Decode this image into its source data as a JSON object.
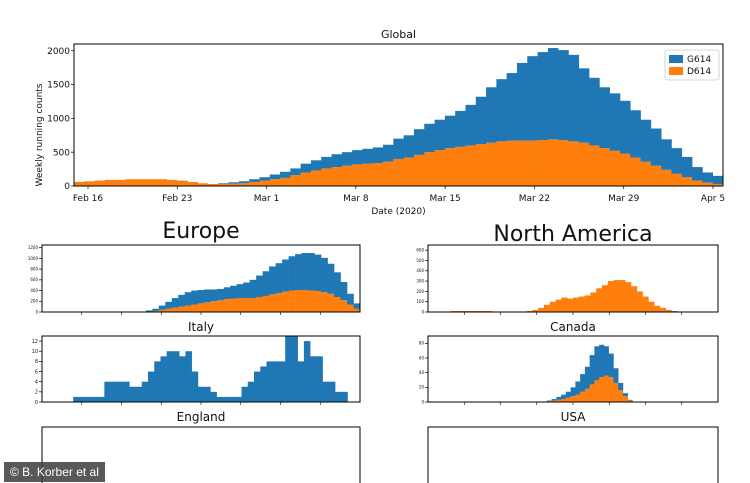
{
  "chart_data": [
    {
      "id": "global",
      "type": "bar",
      "stacked": true,
      "title": "Global",
      "xlabel": "Date (2020)",
      "ylabel": "Weekly running counts",
      "ylim": [
        0,
        2100
      ],
      "yticks": [
        0,
        500,
        1000,
        1500,
        2000
      ],
      "xtick_labels": [
        "Feb 16",
        "Feb 23",
        "Mar 1",
        "Mar 8",
        "Mar 15",
        "Mar 22",
        "Mar 29",
        "Apr 5"
      ],
      "legend": {
        "placement": "top-right",
        "entries": [
          "G614",
          "D614"
        ]
      },
      "series": [
        {
          "name": "G614",
          "color": "#1f77b4",
          "values": [
            0,
            0,
            0,
            0,
            0,
            0,
            0,
            0,
            0,
            0,
            0,
            0,
            0,
            0,
            10,
            20,
            30,
            40,
            50,
            70,
            90,
            100,
            130,
            150,
            170,
            190,
            200,
            210,
            220,
            230,
            250,
            300,
            330,
            380,
            420,
            450,
            480,
            530,
            600,
            700,
            820,
            920,
            1000,
            1150,
            1250,
            1300,
            1350,
            1330,
            1280,
            1100,
            1000,
            900,
            850,
            780,
            700,
            620,
            550,
            450,
            380,
            300,
            200,
            150,
            120
          ]
        },
        {
          "name": "D614",
          "color": "#ff7f0e",
          "values": [
            60,
            70,
            80,
            90,
            90,
            100,
            100,
            100,
            100,
            90,
            80,
            60,
            40,
            30,
            30,
            35,
            40,
            60,
            80,
            100,
            120,
            160,
            200,
            230,
            260,
            280,
            300,
            320,
            330,
            340,
            360,
            400,
            420,
            460,
            500,
            530,
            560,
            580,
            600,
            620,
            640,
            660,
            670,
            670,
            670,
            680,
            690,
            680,
            660,
            640,
            600,
            560,
            520,
            480,
            420,
            360,
            300,
            240,
            180,
            130,
            80,
            50,
            30
          ]
        }
      ]
    },
    {
      "id": "europe",
      "type": "bar",
      "stacked": true,
      "title": "Europe",
      "ylim": [
        0,
        1250
      ],
      "yticks": [
        0,
        200,
        400,
        600,
        800,
        1000,
        1200
      ],
      "series": [
        {
          "name": "G614",
          "color": "#1f77b4",
          "values": [
            0,
            0,
            0,
            0,
            0,
            0,
            0,
            0,
            0,
            0,
            0,
            0,
            0,
            0,
            0,
            0,
            20,
            40,
            80,
            130,
            180,
            220,
            250,
            260,
            250,
            240,
            220,
            210,
            220,
            240,
            260,
            290,
            340,
            400,
            460,
            520,
            560,
            600,
            640,
            670,
            690,
            700,
            680,
            640,
            560,
            460,
            340,
            200,
            100
          ]
        },
        {
          "name": "D614",
          "color": "#ff7f0e",
          "values": [
            0,
            0,
            0,
            0,
            0,
            0,
            0,
            0,
            0,
            0,
            0,
            0,
            0,
            0,
            0,
            0,
            10,
            20,
            40,
            60,
            80,
            100,
            120,
            140,
            160,
            180,
            200,
            220,
            240,
            250,
            260,
            260,
            260,
            280,
            300,
            330,
            350,
            380,
            400,
            410,
            410,
            400,
            390,
            370,
            340,
            280,
            220,
            140,
            60
          ]
        }
      ]
    },
    {
      "id": "north-america",
      "type": "bar",
      "stacked": true,
      "title": "North America",
      "ylim": [
        0,
        650
      ],
      "yticks": [
        0,
        100,
        200,
        300,
        400,
        500,
        600
      ],
      "series": [
        {
          "name": "G614",
          "color": "#1f77b4",
          "values": [
            0,
            0,
            0,
            0,
            0,
            0,
            0,
            0,
            0,
            0,
            0,
            0,
            0,
            0,
            0,
            0,
            0,
            0,
            0,
            0,
            0,
            0,
            0,
            0,
            0,
            0,
            0,
            0,
            0,
            0,
            0,
            0,
            0,
            0,
            0,
            0,
            0,
            0,
            0,
            0,
            0,
            0,
            0,
            0,
            0,
            0,
            0,
            0,
            0,
            0
          ]
        },
        {
          "name": "D614",
          "color": "#ff7f0e",
          "values": [
            0,
            0,
            0,
            0,
            10,
            10,
            10,
            10,
            10,
            10,
            10,
            0,
            0,
            0,
            0,
            0,
            0,
            10,
            20,
            40,
            70,
            100,
            120,
            140,
            130,
            140,
            150,
            160,
            190,
            230,
            260,
            300,
            310,
            310,
            290,
            250,
            200,
            150,
            100,
            60,
            40,
            20,
            10,
            0,
            0,
            0,
            0,
            0,
            0,
            0
          ]
        }
      ]
    },
    {
      "id": "italy",
      "type": "bar",
      "stacked": true,
      "title": "Italy",
      "ylim": [
        0,
        13
      ],
      "yticks": [
        0,
        2,
        4,
        6,
        8,
        10,
        12
      ],
      "series": [
        {
          "name": "G614",
          "color": "#1f77b4",
          "values": [
            0,
            0,
            0,
            0,
            0,
            1,
            1,
            1,
            1,
            1,
            4,
            4,
            4,
            4,
            3,
            3,
            4,
            6,
            8,
            9,
            10,
            10,
            9,
            10,
            6,
            3,
            3,
            2,
            1,
            1,
            1,
            1,
            3,
            4,
            6,
            7,
            8,
            8,
            8,
            13,
            13,
            8,
            12,
            9,
            9,
            4,
            4,
            2,
            2,
            0,
            0
          ]
        },
        {
          "name": "D614",
          "color": "#ff7f0e",
          "values": [
            0,
            0,
            0,
            0,
            0,
            0,
            0,
            0,
            0,
            0,
            0,
            0,
            0,
            0,
            0,
            0,
            0,
            0,
            0,
            0,
            0,
            0,
            0,
            0,
            0,
            0,
            0,
            0,
            0,
            0,
            0,
            0,
            0,
            0,
            0,
            0,
            0,
            0,
            0,
            0,
            0,
            0,
            0,
            0,
            0,
            0,
            0,
            0,
            0,
            0,
            0
          ]
        }
      ]
    },
    {
      "id": "canada",
      "type": "bar",
      "stacked": true,
      "title": "Canada",
      "ylim": [
        0,
        90
      ],
      "yticks": [
        0,
        20,
        40,
        60,
        80
      ],
      "series": [
        {
          "name": "G614",
          "color": "#1f77b4",
          "values": [
            0,
            0,
            0,
            0,
            0,
            0,
            0,
            0,
            0,
            0,
            0,
            0,
            0,
            0,
            0,
            0,
            0,
            0,
            0,
            0,
            0,
            0,
            0,
            0,
            0,
            1,
            2,
            4,
            6,
            8,
            12,
            18,
            24,
            30,
            40,
            46,
            44,
            40,
            32,
            20,
            10,
            4,
            1,
            0,
            0,
            0,
            0,
            0,
            0,
            0,
            0,
            0,
            0,
            0,
            0,
            0,
            0,
            0,
            0,
            0,
            0
          ]
        },
        {
          "name": "D614",
          "color": "#ff7f0e",
          "values": [
            0,
            0,
            0,
            0,
            0,
            0,
            0,
            0,
            0,
            0,
            0,
            0,
            0,
            0,
            0,
            0,
            0,
            0,
            0,
            0,
            0,
            0,
            0,
            0,
            0,
            1,
            2,
            3,
            4,
            6,
            8,
            10,
            14,
            18,
            24,
            30,
            34,
            36,
            34,
            26,
            16,
            8,
            2,
            0,
            0,
            0,
            0,
            0,
            0,
            0,
            0,
            0,
            0,
            0,
            0,
            0,
            0,
            0,
            0,
            0,
            0
          ]
        }
      ]
    },
    {
      "id": "england",
      "type": "bar",
      "stacked": true,
      "title": "England",
      "series": [
        {
          "name": "G614",
          "color": "#1f77b4",
          "values": [
            0,
            0,
            0,
            0,
            0,
            0,
            0,
            0,
            0,
            0,
            0,
            0,
            0,
            0,
            0,
            0,
            0,
            0,
            0,
            0,
            0,
            0,
            0,
            0,
            0,
            0,
            0,
            0,
            0,
            0,
            0,
            0,
            0,
            0,
            0,
            0,
            0,
            0,
            0,
            0,
            0,
            0,
            0,
            0,
            0,
            0,
            0,
            0,
            0,
            0,
            0,
            0,
            0,
            0,
            0,
            0,
            0,
            0,
            0,
            0
          ]
        },
        {
          "name": "D614",
          "color": "#ff7f0e",
          "values": [
            0,
            0,
            0,
            0,
            0,
            0,
            0,
            0,
            0,
            0,
            0,
            0,
            0,
            0,
            0,
            0,
            0,
            0,
            0,
            0,
            0,
            0,
            0,
            0,
            0,
            0,
            0,
            0,
            0,
            0,
            0,
            0,
            0,
            0,
            0,
            0,
            0,
            0,
            0,
            0,
            0,
            0,
            0,
            0,
            0,
            0,
            0,
            0,
            0,
            0,
            0,
            0,
            0,
            0,
            0,
            0,
            0,
            0,
            0,
            0
          ]
        }
      ]
    },
    {
      "id": "usa",
      "type": "bar",
      "stacked": true,
      "title": "USA",
      "series": [
        {
          "name": "G614",
          "color": "#1f77b4",
          "values": [
            0,
            0,
            0,
            0,
            0,
            0,
            0,
            0,
            0,
            0,
            0,
            0,
            0,
            0,
            0,
            0,
            0,
            0,
            0,
            0,
            0,
            0,
            0,
            0,
            0,
            0,
            0,
            0,
            0,
            0,
            0,
            0,
            0,
            0,
            0,
            0,
            0,
            0,
            0,
            0,
            0,
            0,
            0,
            0,
            0,
            0,
            0,
            0,
            0,
            0,
            0,
            0,
            0,
            0,
            0,
            0,
            0,
            0,
            0,
            0
          ]
        },
        {
          "name": "D614",
          "color": "#ff7f0e",
          "values": [
            0,
            0,
            0,
            0,
            0,
            0,
            0,
            0,
            0,
            0,
            0,
            0,
            0,
            0,
            0,
            0,
            0,
            0,
            0,
            0,
            0,
            0,
            0,
            0,
            0,
            0,
            0,
            0,
            0,
            0,
            0,
            0,
            0,
            0,
            0,
            0,
            0,
            0,
            0,
            0,
            0,
            0,
            0,
            0,
            0,
            0,
            0,
            0,
            0,
            0,
            0,
            0,
            0,
            0,
            0,
            0,
            0,
            0,
            0,
            0
          ]
        }
      ]
    }
  ],
  "credit": "© B. Korber et al"
}
